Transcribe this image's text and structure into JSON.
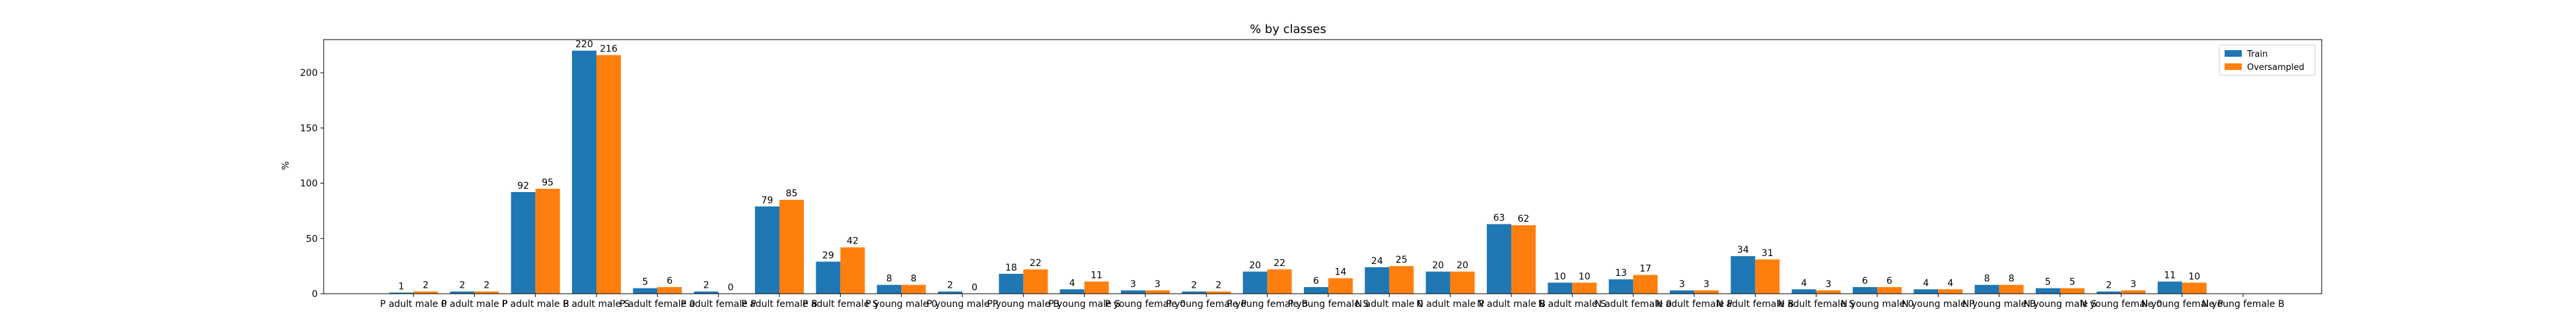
{
  "chart_data": {
    "type": "bar",
    "title": "% by classes",
    "xlabel": "",
    "ylabel": "%",
    "ylim": [
      0,
      230
    ],
    "yticks": [
      0,
      50,
      100,
      150,
      200
    ],
    "grid": false,
    "legend_position": "top-right",
    "categories": [
      "P adult male 0",
      "P adult male P",
      "P adult male B",
      "P adult male S",
      "P adult female 0",
      "P adult female P",
      "P adult female B",
      "P adult female S",
      "P young male 0",
      "P young male P",
      "P young male B",
      "P young male S",
      "P young female 0",
      "P young female P",
      "P young female B",
      "P young female S",
      "N adult male 0",
      "N adult male P",
      "N adult male B",
      "N adult male S",
      "N adult female 0",
      "N adult female P",
      "N adult female B",
      "N adult female S",
      "N young male 0",
      "N young male P",
      "N young male B",
      "N young male S",
      "N young female 0",
      "N young female P",
      "N young female B"
    ],
    "series": [
      {
        "name": "Train",
        "color": "#1f77b4",
        "values": [
          1,
          2,
          92,
          220,
          5,
          2,
          79,
          29,
          8,
          2,
          18,
          4,
          3,
          2,
          20,
          6,
          24,
          20,
          63,
          10,
          13,
          3,
          34,
          4,
          6,
          4,
          8,
          5,
          2,
          11,
          0
        ]
      },
      {
        "name": "Oversampled",
        "color": "#ff7f0e",
        "values": [
          2,
          2,
          95,
          216,
          6,
          0,
          85,
          42,
          8,
          0,
          22,
          11,
          3,
          2,
          22,
          14,
          25,
          20,
          62,
          10,
          17,
          3,
          31,
          3,
          6,
          4,
          8,
          5,
          3,
          10,
          0
        ]
      }
    ],
    "bar_value_labels_shown": [
      [
        true,
        true,
        true,
        true,
        true,
        true,
        true,
        true,
        true,
        true,
        true,
        true,
        true,
        true,
        true,
        true,
        true,
        true,
        true,
        true,
        true,
        true,
        true,
        true,
        true,
        true,
        true,
        true,
        true,
        true,
        false
      ],
      [
        true,
        true,
        true,
        true,
        true,
        true,
        true,
        true,
        true,
        true,
        true,
        true,
        true,
        true,
        true,
        true,
        true,
        true,
        true,
        true,
        true,
        true,
        true,
        true,
        true,
        true,
        true,
        true,
        true,
        true,
        false
      ]
    ]
  }
}
